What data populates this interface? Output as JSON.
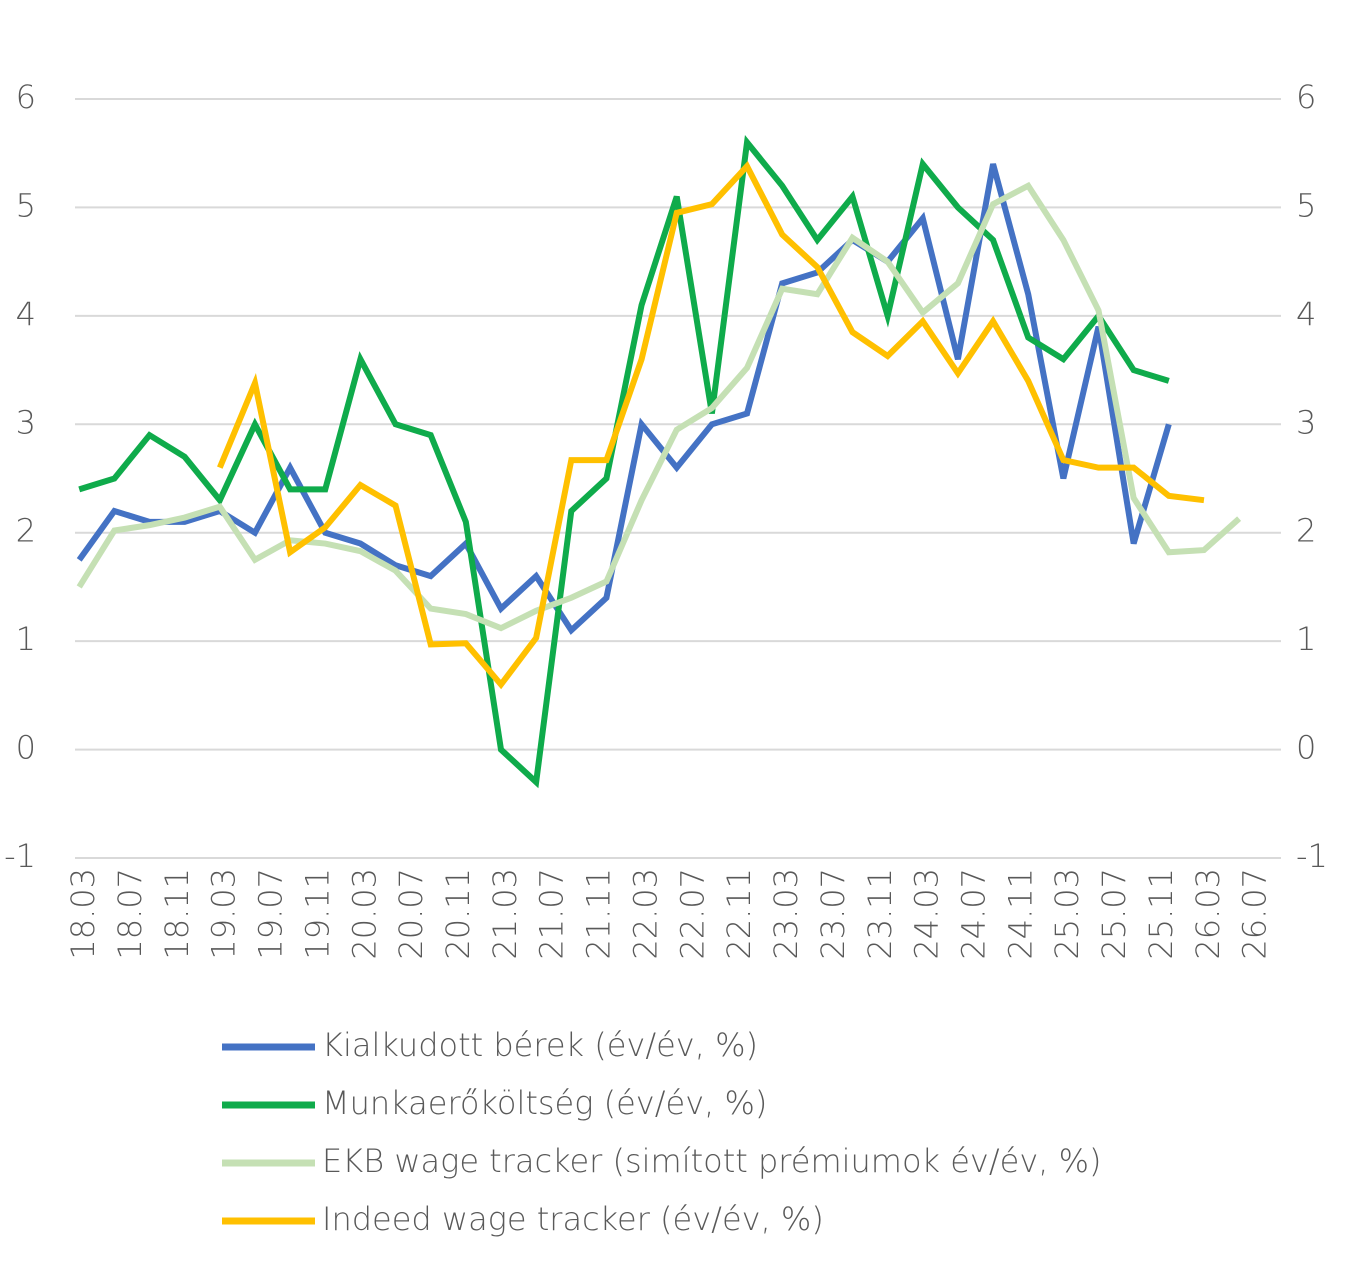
{
  "chart_data": {
    "type": "line",
    "x": [
      2018.125,
      2018.375,
      2018.625,
      2018.875,
      2019.125,
      2019.375,
      2019.625,
      2019.875,
      2020.125,
      2020.375,
      2020.625,
      2020.875,
      2021.125,
      2021.375,
      2021.625,
      2021.875,
      2022.125,
      2022.375,
      2022.625,
      2022.875,
      2023.125,
      2023.375,
      2023.625,
      2023.875,
      2024.125,
      2024.375,
      2024.625,
      2024.875,
      2025.125,
      2025.375,
      2025.625,
      2025.875,
      2026.125,
      2026.375
    ],
    "xlim": [
      2018.095,
      2026.673
    ],
    "xticks": [
      {
        "value": 2018.1667,
        "label": "18.03"
      },
      {
        "value": 2018.5,
        "label": "18.07"
      },
      {
        "value": 2018.8333,
        "label": "18.11"
      },
      {
        "value": 2019.1667,
        "label": "19.03"
      },
      {
        "value": 2019.5,
        "label": "19.07"
      },
      {
        "value": 2019.8333,
        "label": "19.11"
      },
      {
        "value": 2020.1667,
        "label": "20.03"
      },
      {
        "value": 2020.5,
        "label": "20.07"
      },
      {
        "value": 2020.8333,
        "label": "20.11"
      },
      {
        "value": 2021.1667,
        "label": "21.03"
      },
      {
        "value": 2021.5,
        "label": "21.07"
      },
      {
        "value": 2021.8333,
        "label": "21.11"
      },
      {
        "value": 2022.1667,
        "label": "22.03"
      },
      {
        "value": 2022.5,
        "label": "22.07"
      },
      {
        "value": 2022.8333,
        "label": "22.11"
      },
      {
        "value": 2023.1667,
        "label": "23.03"
      },
      {
        "value": 2023.5,
        "label": "23.07"
      },
      {
        "value": 2023.8333,
        "label": "23.11"
      },
      {
        "value": 2024.1667,
        "label": "24.03"
      },
      {
        "value": 2024.5,
        "label": "24.07"
      },
      {
        "value": 2024.8333,
        "label": "24.11"
      },
      {
        "value": 2025.1667,
        "label": "25.03"
      },
      {
        "value": 2025.5,
        "label": "25.07"
      },
      {
        "value": 2025.8333,
        "label": "25.11"
      },
      {
        "value": 2026.1667,
        "label": "26.03"
      },
      {
        "value": 2026.5,
        "label": "26.07"
      }
    ],
    "ylim": [
      -1,
      6
    ],
    "yticks": [
      -1,
      0,
      1,
      2,
      3,
      4,
      5,
      6
    ],
    "y2lim": [
      -1,
      6
    ],
    "y2ticks": [
      -1,
      0,
      1,
      2,
      3,
      4,
      5,
      6
    ],
    "grid": true,
    "legend": "bottom",
    "series": [
      {
        "name": "Kialkudott bérek (év/év, %)",
        "color": "#4472c4",
        "values": [
          1.75,
          2.2,
          2.1,
          2.1,
          2.2,
          2.0,
          2.6,
          2.0,
          1.9,
          1.7,
          1.6,
          1.9,
          1.3,
          1.6,
          1.1,
          1.4,
          3.0,
          2.6,
          3.0,
          3.1,
          4.3,
          4.4,
          4.7,
          4.5,
          4.9,
          3.6,
          5.4,
          4.2,
          2.5,
          3.9,
          1.9,
          3.0,
          null,
          null
        ]
      },
      {
        "name": "Munkaerőköltség (év/év, %)",
        "color": "#0fab4b",
        "values": [
          2.4,
          2.5,
          2.9,
          2.7,
          2.3,
          3.0,
          2.4,
          2.4,
          3.6,
          3.0,
          2.9,
          2.1,
          0.0,
          -0.3,
          2.2,
          2.5,
          4.1,
          5.1,
          3.1,
          5.6,
          5.2,
          4.7,
          5.1,
          4.0,
          5.4,
          5.0,
          4.7,
          3.8,
          3.6,
          4.0,
          3.5,
          3.4,
          null,
          null
        ]
      },
      {
        "name": "EKB wage tracker (simított prémiumok év/év, %)",
        "color": "#c5e0b4",
        "values": [
          1.5,
          2.02,
          2.07,
          2.14,
          2.24,
          1.75,
          1.93,
          1.9,
          1.83,
          1.65,
          1.3,
          1.25,
          1.12,
          1.28,
          1.4,
          1.55,
          2.3,
          2.95,
          3.15,
          3.52,
          4.25,
          4.2,
          4.72,
          4.5,
          4.03,
          4.3,
          5.03,
          5.2,
          4.7,
          4.05,
          2.32,
          1.82,
          1.84,
          2.13
        ]
      },
      {
        "name": "Indeed wage tracker (év/év, %)",
        "color": "#ffc000",
        "values": [
          null,
          null,
          null,
          null,
          2.6,
          3.38,
          1.82,
          2.05,
          2.44,
          2.25,
          0.97,
          0.98,
          0.6,
          1.03,
          2.67,
          2.67,
          3.6,
          4.95,
          5.03,
          5.38,
          4.75,
          4.45,
          3.85,
          3.63,
          3.95,
          3.47,
          3.95,
          3.4,
          2.67,
          2.6,
          2.6,
          2.34,
          2.3,
          null
        ]
      }
    ]
  }
}
